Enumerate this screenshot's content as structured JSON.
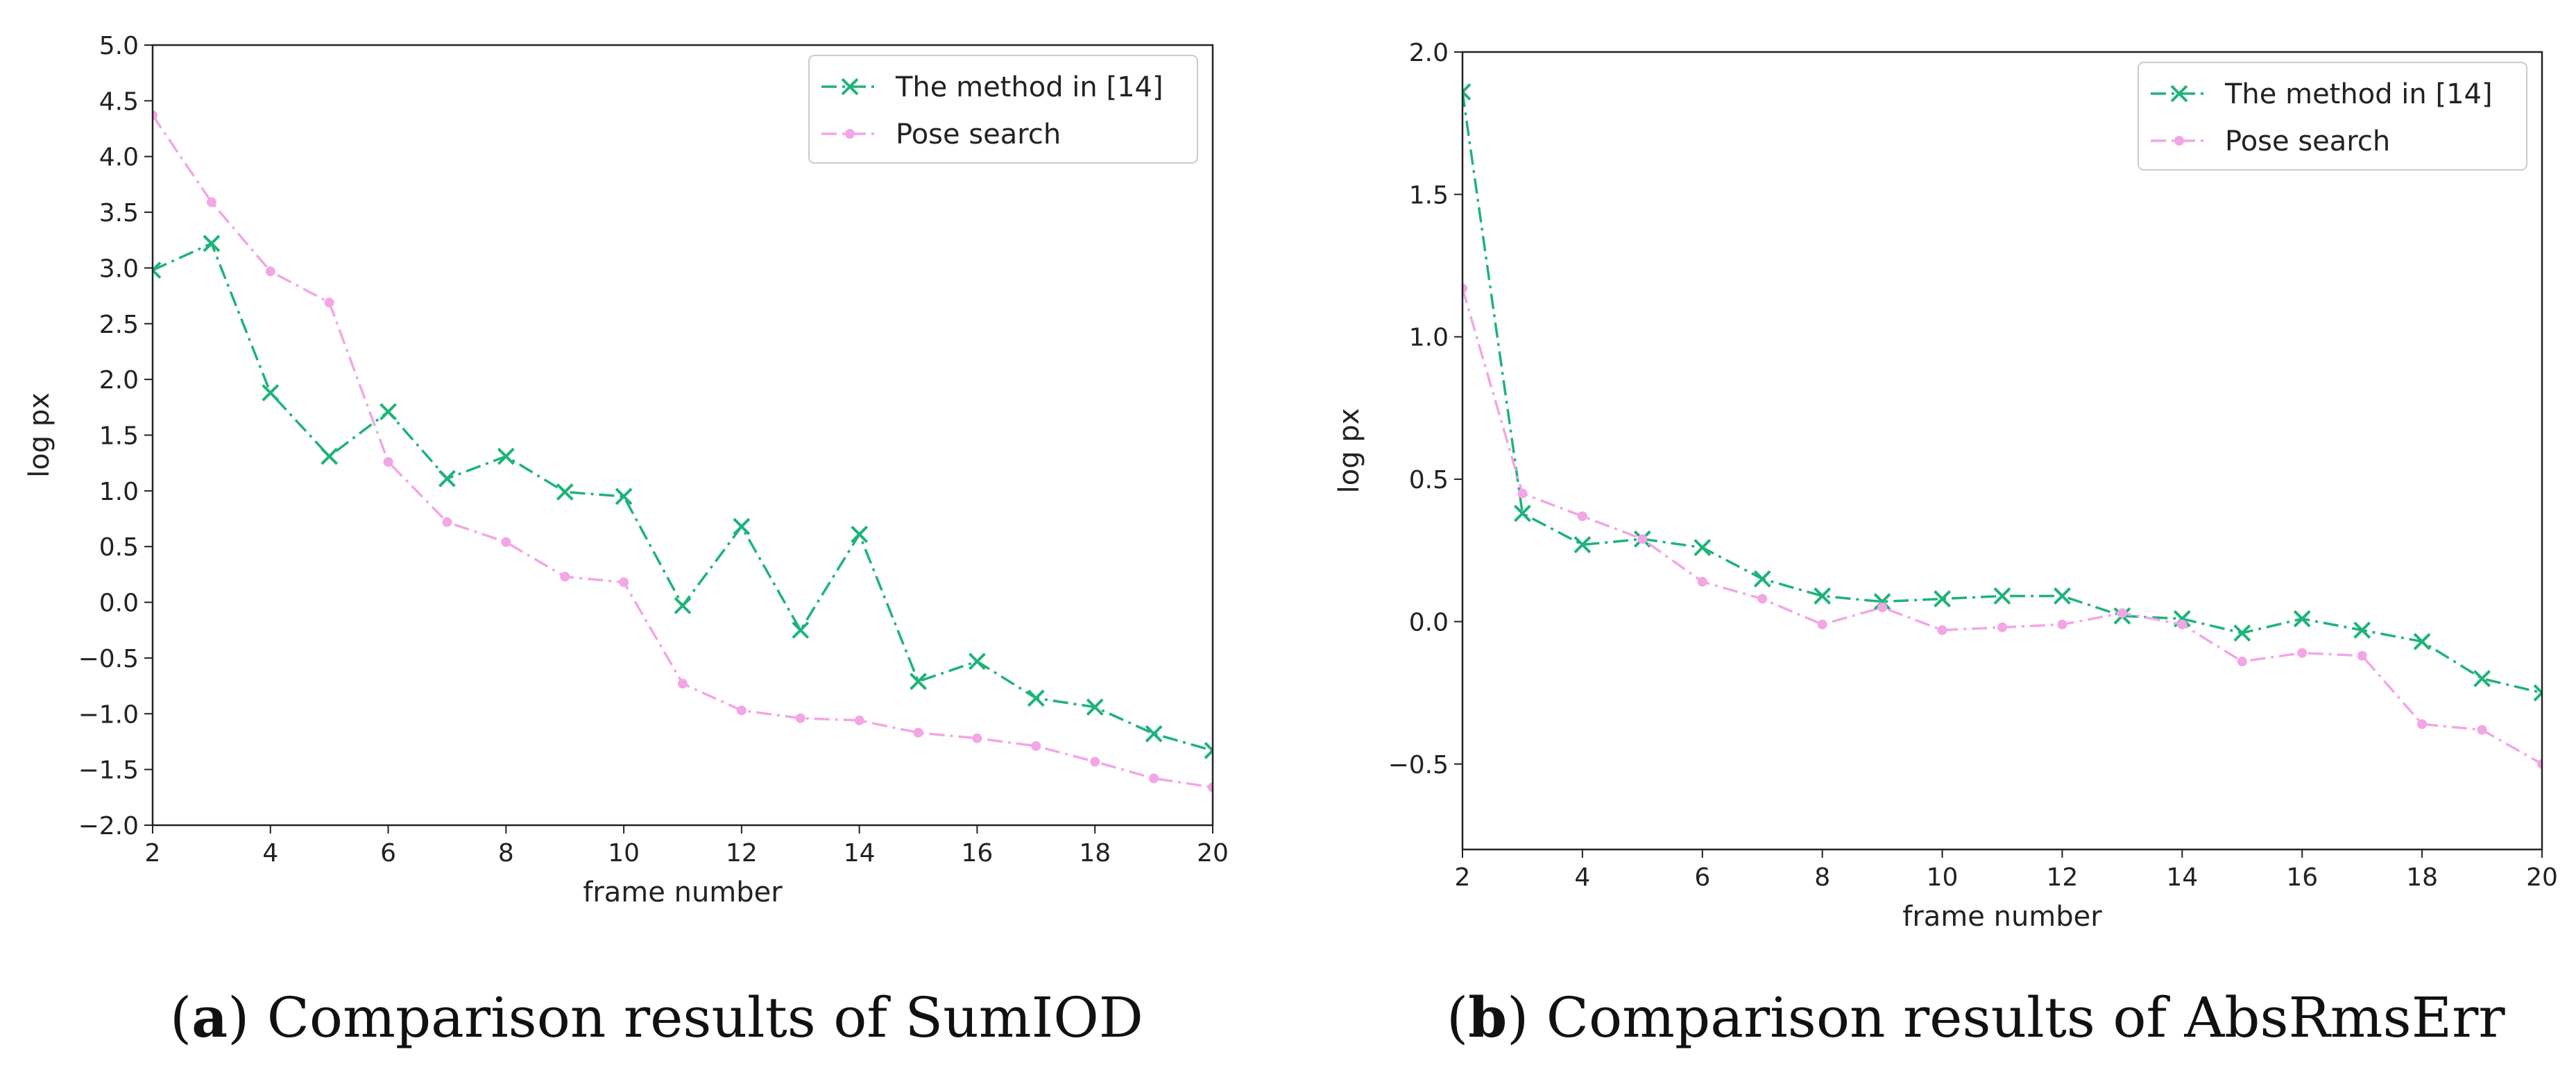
{
  "colors": {
    "method14": "#1db37a",
    "pose": "#f2a6e6"
  },
  "chart_data": [
    {
      "type": "line",
      "caption_letter": "a",
      "caption_text": ") Comparison results of SumIOD",
      "caption_open": "(",
      "xlabel": "frame number",
      "ylabel": "log px",
      "xlim": [
        2,
        20
      ],
      "ylim": [
        -2.0,
        5.0
      ],
      "xticks": [
        "2",
        "4",
        "6",
        "8",
        "10",
        "12",
        "14",
        "16",
        "18",
        "20"
      ],
      "yticks": [
        "−2.0",
        "−1.5",
        "−1.0",
        "−0.5",
        "0.0",
        "0.5",
        "1.0",
        "1.5",
        "2.0",
        "2.5",
        "3.0",
        "3.5",
        "4.0",
        "4.5",
        "5.0"
      ],
      "legend_position": "top-right",
      "x": [
        2,
        3,
        4,
        5,
        6,
        7,
        8,
        9,
        10,
        11,
        12,
        13,
        14,
        15,
        16,
        17,
        18,
        19,
        20
      ],
      "series": [
        {
          "name": "The method in [14]",
          "marker": "x",
          "values": [
            2.98,
            3.22,
            1.88,
            1.31,
            1.71,
            1.11,
            1.31,
            0.99,
            0.95,
            -0.03,
            0.68,
            -0.25,
            0.61,
            -0.71,
            -0.53,
            -0.86,
            -0.94,
            -1.18,
            -1.33
          ]
        },
        {
          "name": "Pose search",
          "marker": "dot",
          "values": [
            4.37,
            3.59,
            2.97,
            2.69,
            1.26,
            0.72,
            0.54,
            0.23,
            0.18,
            -0.73,
            -0.97,
            -1.04,
            -1.06,
            -1.17,
            -1.22,
            -1.29,
            -1.43,
            -1.58,
            -1.66
          ]
        }
      ]
    },
    {
      "type": "line",
      "caption_letter": "b",
      "caption_text": ") Comparison results of AbsRmsErr",
      "caption_open": "(",
      "xlabel": "frame number",
      "ylabel": "log px",
      "xlim": [
        2,
        20
      ],
      "ylim": [
        -0.8,
        2.0
      ],
      "xticks": [
        "2",
        "4",
        "6",
        "8",
        "10",
        "12",
        "14",
        "16",
        "18",
        "20"
      ],
      "yticks": [
        "−0.5",
        "0.0",
        "0.5",
        "1.0",
        "1.5",
        "2.0"
      ],
      "ytick_values": [
        -0.5,
        0.0,
        0.5,
        1.0,
        1.5,
        2.0
      ],
      "legend_position": "top-right",
      "x": [
        2,
        3,
        4,
        5,
        6,
        7,
        8,
        9,
        10,
        11,
        12,
        13,
        14,
        15,
        16,
        17,
        18,
        19,
        20
      ],
      "series": [
        {
          "name": "The method in [14]",
          "marker": "x",
          "values": [
            1.86,
            0.38,
            0.27,
            0.29,
            0.26,
            0.15,
            0.09,
            0.07,
            0.08,
            0.09,
            0.09,
            0.02,
            0.01,
            -0.04,
            0.01,
            -0.03,
            -0.07,
            -0.2,
            -0.25
          ]
        },
        {
          "name": "Pose search",
          "marker": "dot",
          "values": [
            1.17,
            0.45,
            0.37,
            0.29,
            0.14,
            0.08,
            -0.01,
            0.05,
            -0.03,
            -0.02,
            -0.01,
            0.03,
            -0.01,
            -0.14,
            -0.11,
            -0.12,
            -0.36,
            -0.38,
            -0.5
          ]
        }
      ]
    }
  ]
}
